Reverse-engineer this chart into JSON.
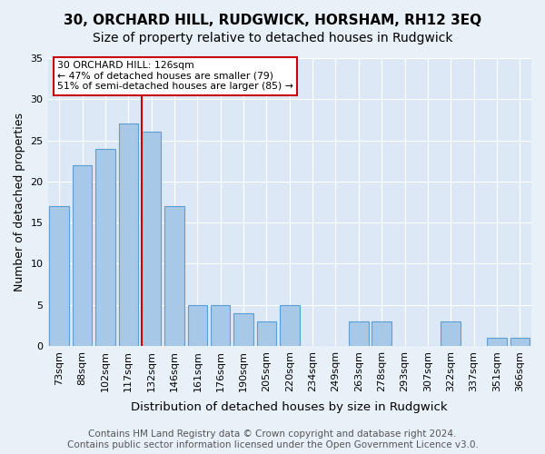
{
  "title": "30, ORCHARD HILL, RUDGWICK, HORSHAM, RH12 3EQ",
  "subtitle": "Size of property relative to detached houses in Rudgwick",
  "xlabel": "Distribution of detached houses by size in Rudgwick",
  "ylabel": "Number of detached properties",
  "categories": [
    "73sqm",
    "88sqm",
    "102sqm",
    "117sqm",
    "132sqm",
    "146sqm",
    "161sqm",
    "176sqm",
    "190sqm",
    "205sqm",
    "220sqm",
    "234sqm",
    "249sqm",
    "263sqm",
    "278sqm",
    "293sqm",
    "307sqm",
    "322sqm",
    "337sqm",
    "351sqm",
    "366sqm"
  ],
  "values": [
    17,
    22,
    24,
    27,
    26,
    17,
    5,
    5,
    4,
    3,
    5,
    0,
    0,
    3,
    3,
    0,
    0,
    3,
    0,
    1,
    1
  ],
  "bar_color": "#a8c8e8",
  "bar_edge_color": "#5a9fd4",
  "ylim": [
    0,
    35
  ],
  "yticks": [
    0,
    5,
    10,
    15,
    20,
    25,
    30,
    35
  ],
  "vline_color": "#cc0000",
  "annotation_text": "30 ORCHARD HILL: 126sqm\n← 47% of detached houses are smaller (79)\n51% of semi-detached houses are larger (85) →",
  "annotation_box_color": "#ffffff",
  "annotation_box_edge": "#cc0000",
  "footer_text": "Contains HM Land Registry data © Crown copyright and database right 2024.\nContains public sector information licensed under the Open Government Licence v3.0.",
  "bg_color": "#e8f0f8",
  "plot_bg_color": "#dce8f5",
  "title_fontsize": 11,
  "subtitle_fontsize": 10,
  "axis_label_fontsize": 9,
  "tick_fontsize": 8,
  "footer_fontsize": 7.5
}
